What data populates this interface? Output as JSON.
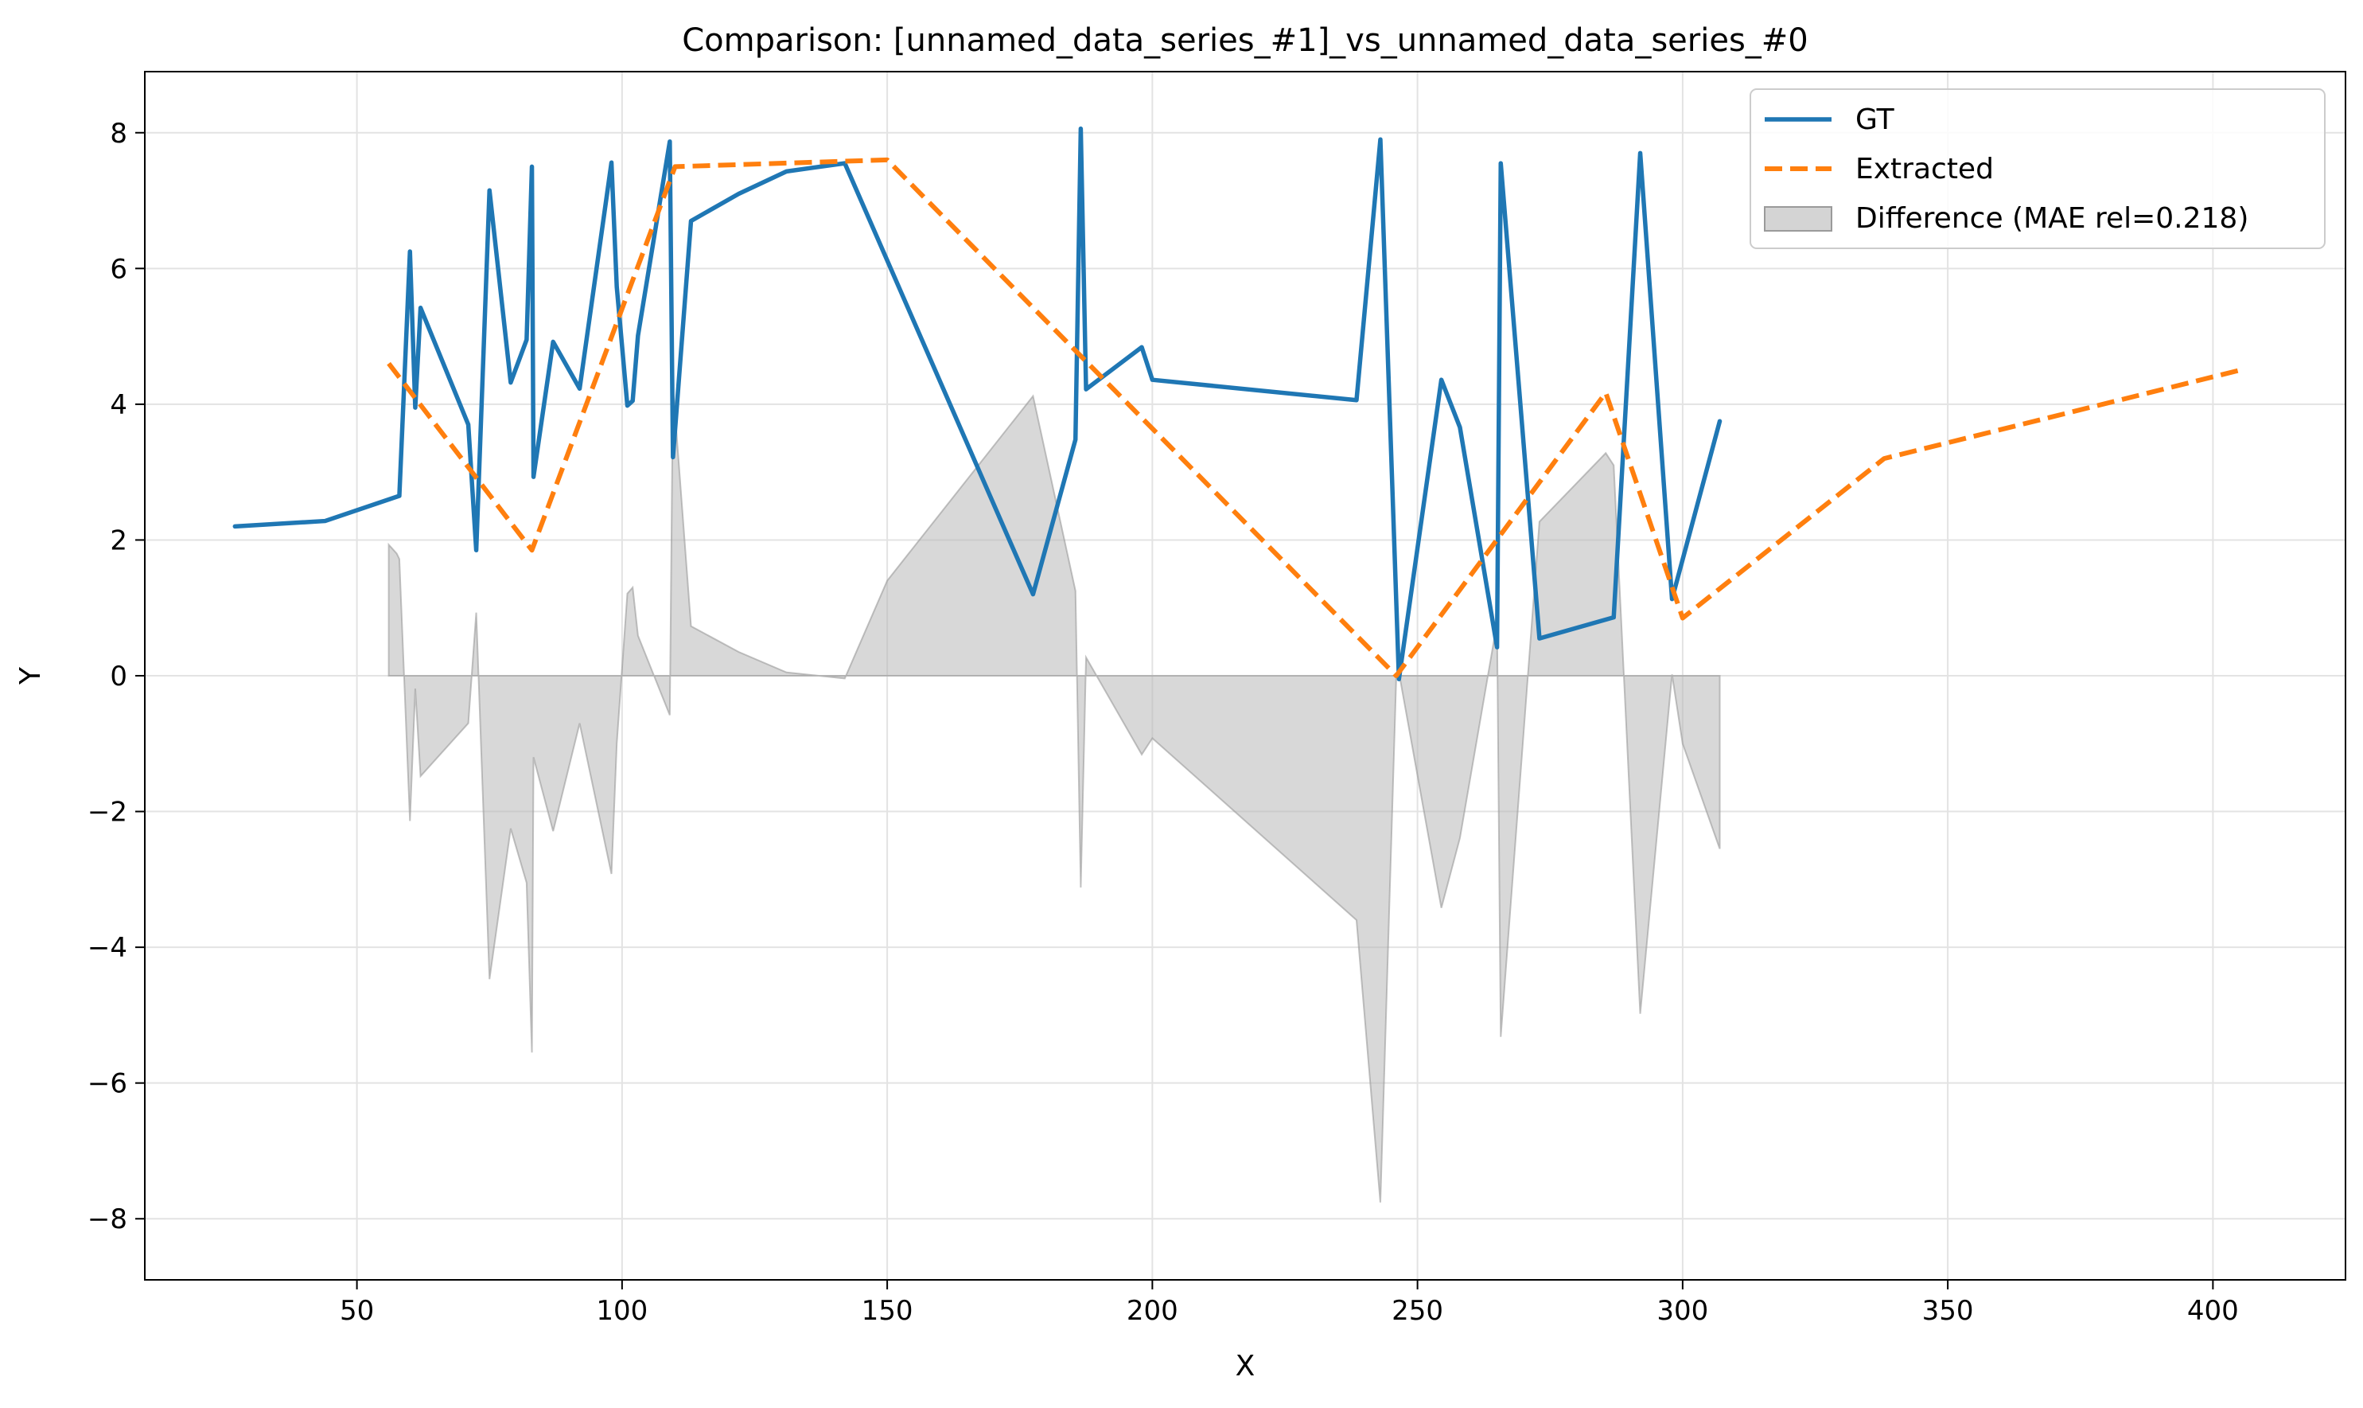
{
  "chart_data": {
    "type": "line",
    "title": "Comparison: [unnamed_data_series_#1]_vs_unnamed_data_series_#0",
    "xlabel": "X",
    "ylabel": "Y",
    "xlim": [
      10,
      425
    ],
    "ylim": [
      -8.9,
      8.9
    ],
    "xticks": [
      50,
      100,
      150,
      200,
      250,
      300,
      350,
      400
    ],
    "yticks": [
      -8,
      -6,
      -4,
      -2,
      0,
      2,
      4,
      6,
      8
    ],
    "grid": true,
    "legend_position": "top-right",
    "series": [
      {
        "name": "GT",
        "color": "#1f77b4",
        "style": "solid",
        "x": [
          27,
          44,
          58,
          60,
          61,
          62,
          71,
          72.5,
          75,
          79,
          82,
          83,
          83.3,
          87,
          92,
          98,
          99,
          101,
          102,
          103,
          109,
          109.6,
          113,
          122,
          131,
          142,
          177.5,
          185.5,
          186.5,
          187.5,
          198,
          200,
          238.5,
          243,
          246.5,
          254.5,
          258,
          265,
          265.7,
          273,
          287,
          292,
          298,
          307
        ],
        "y": [
          2.2,
          2.28,
          2.65,
          6.25,
          3.95,
          5.42,
          3.7,
          1.85,
          7.15,
          4.32,
          4.95,
          7.5,
          2.93,
          4.92,
          4.23,
          7.56,
          5.73,
          3.98,
          4.05,
          5.01,
          7.87,
          3.22,
          6.7,
          7.1,
          7.43,
          7.55,
          1.2,
          3.48,
          8.06,
          4.22,
          4.84,
          4.36,
          4.06,
          7.9,
          -0.05,
          4.36,
          3.66,
          0.42,
          7.55,
          0.55,
          0.86,
          7.7,
          1.13,
          3.75
        ]
      },
      {
        "name": "Extracted",
        "color": "#ff7f0e",
        "style": "dashed",
        "x": [
          56,
          83,
          110,
          150,
          246,
          285.5,
          300,
          338,
          405
        ],
        "y": [
          4.6,
          1.85,
          7.5,
          7.6,
          0,
          4.17,
          0.85,
          3.2,
          4.5
        ]
      },
      {
        "name": "Difference (MAE rel=0.218)",
        "color": "#aaaaaa",
        "style": "fill",
        "x": [
          56,
          57.5,
          58,
          60,
          61,
          62,
          71,
          72.5,
          75,
          79,
          82,
          83,
          83.3,
          87,
          92,
          98,
          99,
          101,
          102,
          103,
          109,
          109.6,
          113,
          122,
          131,
          142,
          150,
          177.5,
          185.5,
          186.5,
          187.5,
          198,
          200,
          238.5,
          243,
          246,
          246.5,
          254.5,
          258,
          265,
          265.7,
          273,
          285.5,
          287,
          292,
          298,
          300,
          307
        ],
        "y": [
          1.93,
          1.8,
          1.72,
          -2.14,
          -0.19,
          -1.48,
          -0.7,
          0.93,
          -4.47,
          -2.25,
          -3.05,
          -5.55,
          -1.2,
          -2.29,
          -0.7,
          -2.92,
          -1.0,
          1.21,
          1.3,
          0.59,
          -0.58,
          4.27,
          0.73,
          0.35,
          0.05,
          -0.04,
          1.4,
          4.12,
          1.25,
          -3.12,
          0.27,
          -1.16,
          -0.92,
          -3.6,
          -7.76,
          0,
          0.05,
          -3.42,
          -2.39,
          0.78,
          -5.32,
          2.27,
          3.28,
          3.1,
          -4.98,
          0.02,
          -1.0,
          -2.55
        ]
      }
    ]
  }
}
